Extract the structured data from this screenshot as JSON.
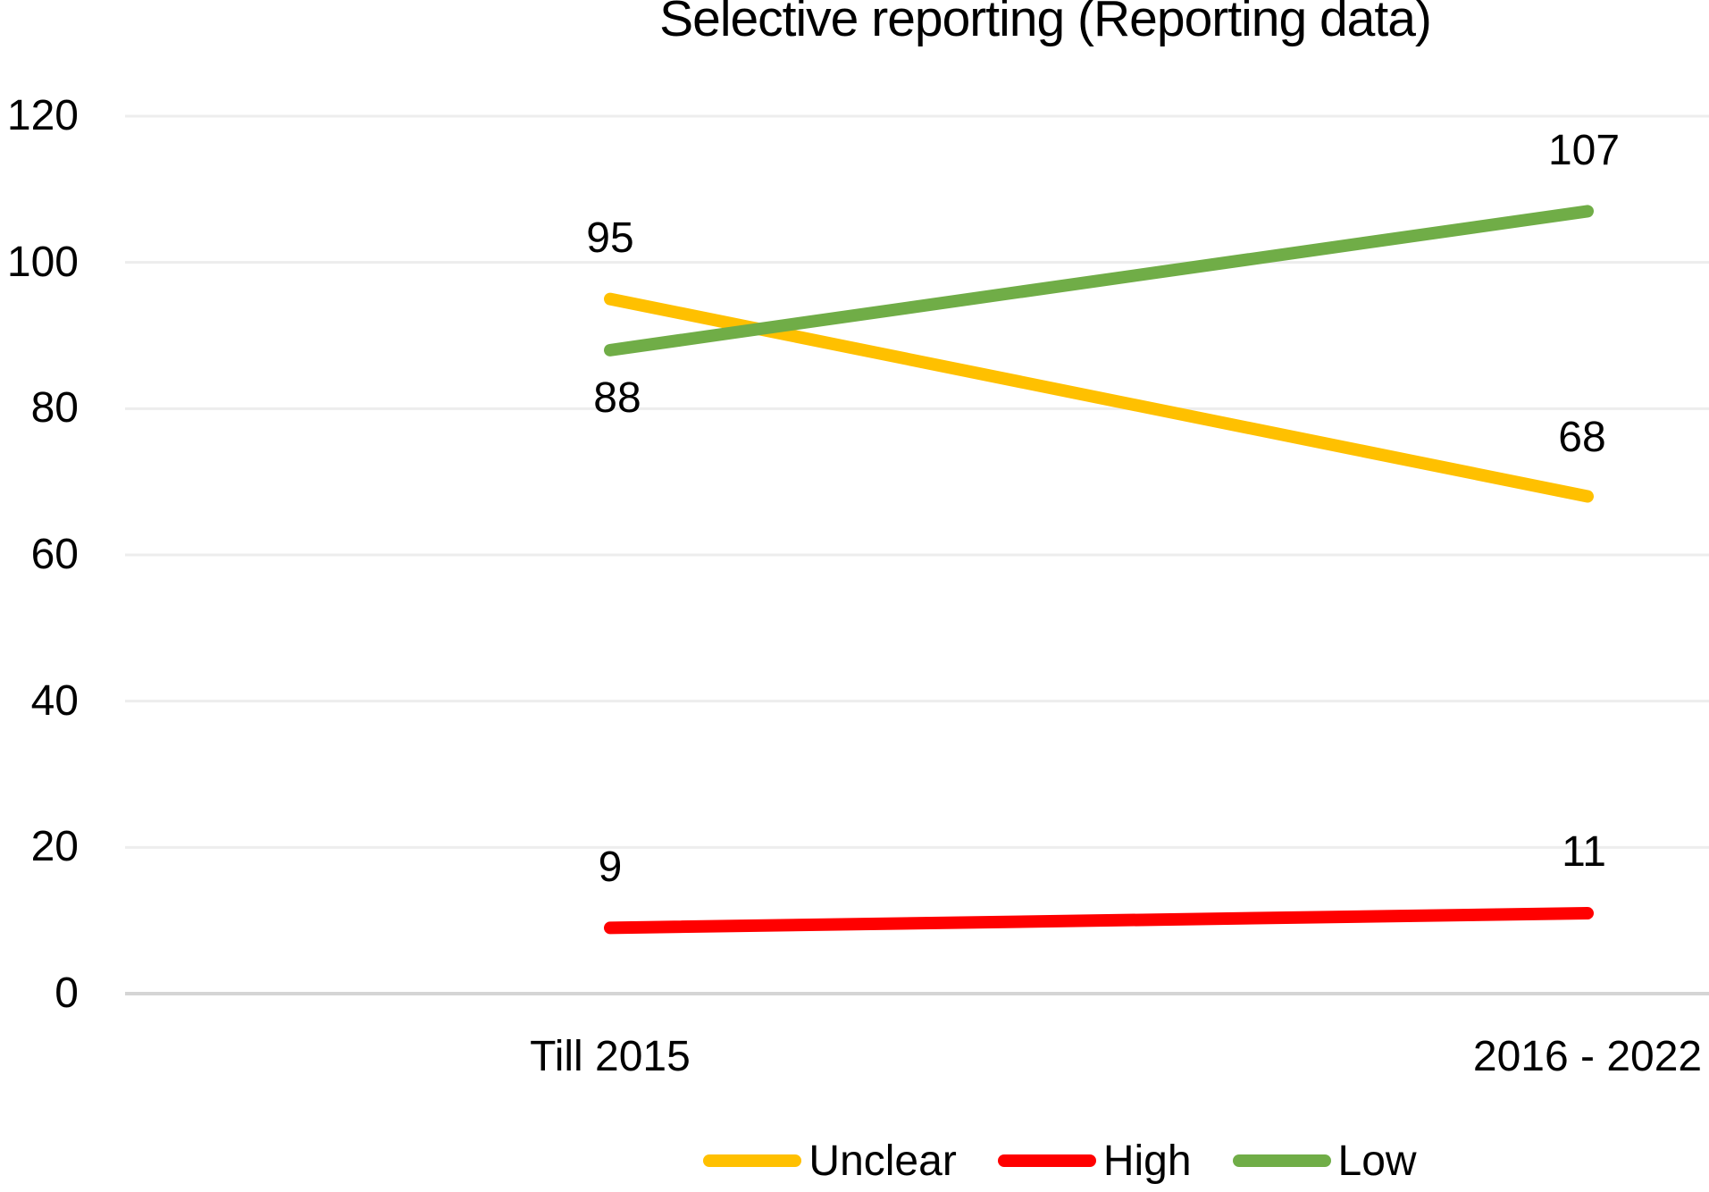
{
  "chart_data": {
    "type": "line",
    "title": "Selective reporting (Reporting data)",
    "categories": [
      "Till 2015",
      "2016 - 2022"
    ],
    "y_ticks": [
      0,
      20,
      40,
      60,
      80,
      100,
      120
    ],
    "ylim": [
      0,
      120
    ],
    "grid": "horizontal-only",
    "gridline_color": "#EDEDED",
    "axis_line_color": "#D5D5D5",
    "legend_position": "bottom-center",
    "series": [
      {
        "name": "Unclear",
        "color": "#FFC000",
        "values": [
          95,
          68
        ],
        "label_offsets": [
          [
            0,
            -68
          ],
          [
            -6,
            -66
          ]
        ]
      },
      {
        "name": "High",
        "color": "#FF0000",
        "values": [
          9,
          11
        ],
        "label_offsets": [
          [
            0,
            -67
          ],
          [
            -4,
            -68
          ]
        ]
      },
      {
        "name": "Low",
        "color": "#70AD47",
        "values": [
          88,
          107
        ],
        "label_offsets": [
          [
            8,
            54
          ],
          [
            -4,
            -67
          ]
        ]
      }
    ]
  }
}
